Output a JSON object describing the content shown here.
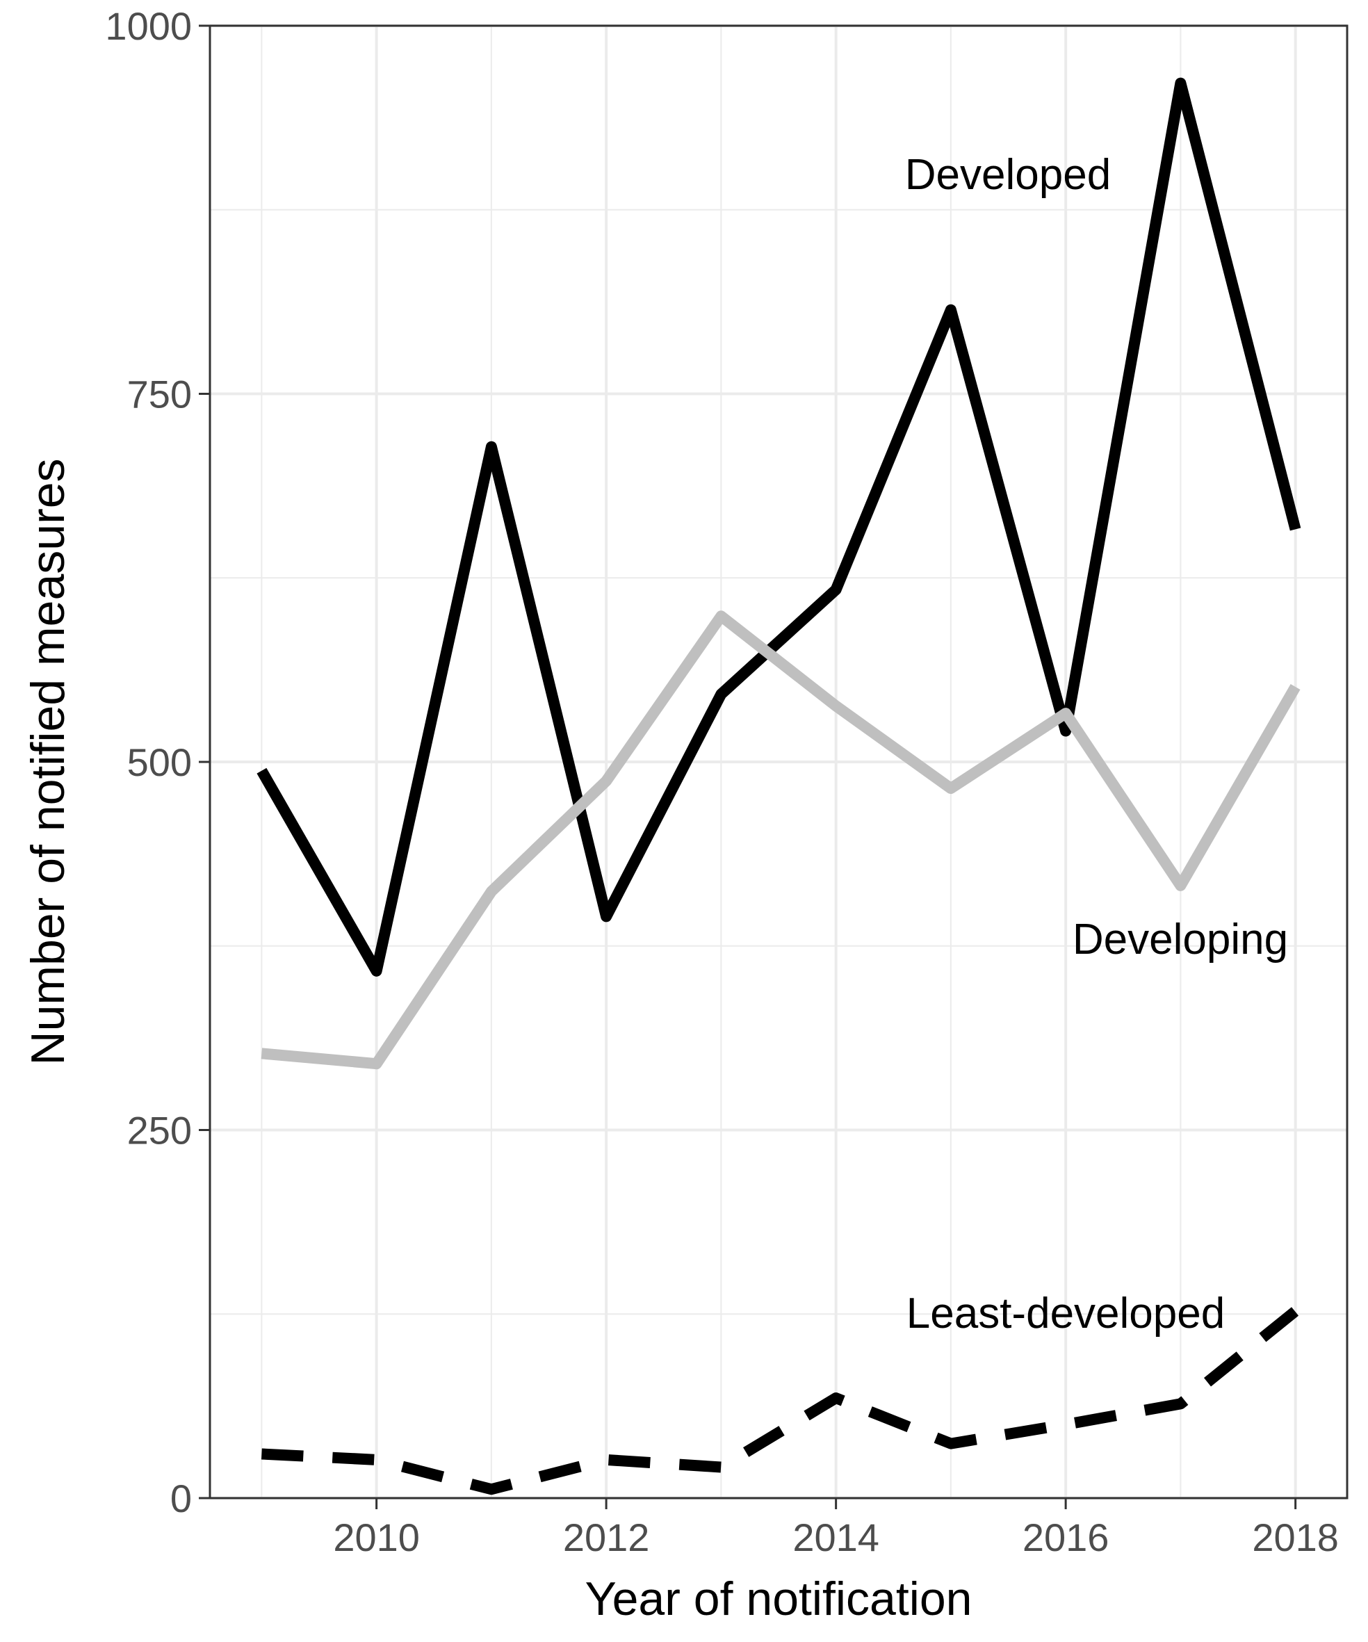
{
  "chart_data": {
    "type": "line",
    "title": "",
    "xlabel": "Year of notification",
    "ylabel": "Number of notified measures",
    "x": [
      2009,
      2010,
      2011,
      2012,
      2013,
      2014,
      2015,
      2016,
      2017,
      2018
    ],
    "xlim": [
      2008.55,
      2018.45
    ],
    "ylim": [
      0,
      1000
    ],
    "xticks": [
      2010,
      2012,
      2014,
      2016,
      2018
    ],
    "yticks": [
      0,
      250,
      500,
      750,
      1000
    ],
    "grid": true,
    "legend": "none (series labelled directly on plot)",
    "series": [
      {
        "name": "Developed",
        "values": [
          494,
          358,
          714,
          395,
          546,
          617,
          807,
          521,
          961,
          658
        ],
        "color": "#000000",
        "dash": "solid"
      },
      {
        "name": "Developing",
        "values": [
          302,
          295,
          412,
          487,
          599,
          538,
          482,
          533,
          416,
          551
        ],
        "color": "#bfbfbf",
        "dash": "solid"
      },
      {
        "name": "Least-developed",
        "values": [
          30,
          26,
          6,
          26,
          21,
          68,
          37,
          50,
          64,
          127
        ],
        "color": "#000000",
        "dash": "dashed"
      }
    ]
  }
}
